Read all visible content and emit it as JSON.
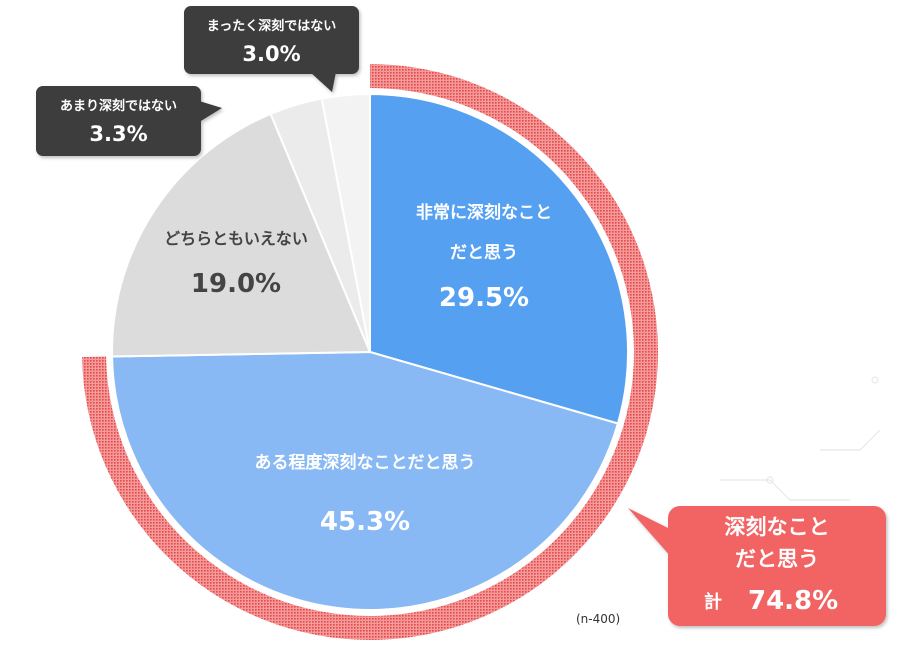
{
  "chart_data": {
    "type": "pie",
    "slices": [
      {
        "label_lines": [
          "非常に深刻なこと",
          "だと思う"
        ],
        "value": 29.5,
        "value_text": "29.5%",
        "color": "#56a0f2"
      },
      {
        "label_lines": [
          "ある程度深刻なことだと思う"
        ],
        "value": 45.3,
        "value_text": "45.3%",
        "color": "#88b9f4"
      },
      {
        "label_lines": [
          "どちらともいえない"
        ],
        "value": 19.0,
        "value_text": "19.0%",
        "color": "#dcdcdc"
      },
      {
        "label_lines": [
          "あまり深刻ではない"
        ],
        "value": 3.3,
        "value_text": "3.3%",
        "color": "#ebebeb"
      },
      {
        "label_lines": [
          "まったく深刻ではない"
        ],
        "value": 3.0,
        "value_text": "3.0%",
        "color": "#f3f3f3"
      }
    ],
    "total_callout": {
      "lines": [
        "深刻なこと",
        "だと思う"
      ],
      "prefix": "計",
      "value_text": "74.8%",
      "value": 74.8,
      "color": "#f26464"
    },
    "sample_note": "(n-400)",
    "callout_color": "#3d3d3d"
  }
}
